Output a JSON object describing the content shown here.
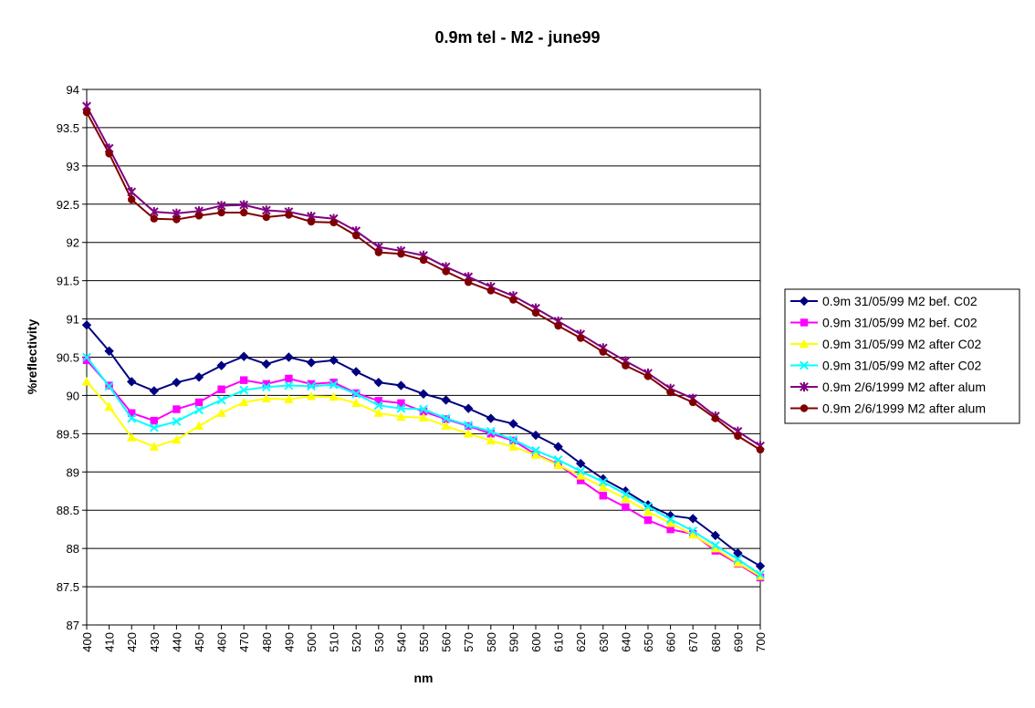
{
  "chart_data": {
    "type": "line",
    "title": "0.9m tel - M2 - june99",
    "xlabel": "nm",
    "ylabel": "%reflectivity",
    "x": [
      400,
      410,
      420,
      430,
      440,
      450,
      460,
      470,
      480,
      490,
      500,
      510,
      520,
      530,
      540,
      550,
      560,
      570,
      580,
      590,
      600,
      610,
      620,
      630,
      640,
      650,
      660,
      670,
      680,
      690,
      700
    ],
    "x_tick_labels": [
      "400",
      "410",
      "420",
      "430",
      "440",
      "450",
      "460",
      "470",
      "480",
      "490",
      "500",
      "510",
      "520",
      "530",
      "540",
      "550",
      "560",
      "570",
      "580",
      "590",
      "600",
      "610",
      "620",
      "630",
      "640",
      "650",
      "660",
      "670",
      "680",
      "690",
      "700"
    ],
    "ylim": [
      87,
      94
    ],
    "y_tick_labels": [
      "87",
      "87.5",
      "88",
      "88.5",
      "89",
      "89.5",
      "90",
      "90.5",
      "91",
      "91.5",
      "92",
      "92.5",
      "93",
      "93.5",
      "94"
    ],
    "grid": "horizontal",
    "legend_position": "right",
    "series": [
      {
        "name": "0.9m 31/05/99 M2  bef. C02",
        "color": "#000080",
        "marker": "diamond",
        "values": [
          90.92,
          90.58,
          90.18,
          90.06,
          90.17,
          90.24,
          90.39,
          90.51,
          90.41,
          90.5,
          90.43,
          90.46,
          90.31,
          90.17,
          90.13,
          90.02,
          89.94,
          89.83,
          89.7,
          89.63,
          89.48,
          89.33,
          89.11,
          88.91,
          88.75,
          88.57,
          88.43,
          88.39,
          88.17,
          87.94,
          87.77
        ]
      },
      {
        "name": "0.9m 31/05/99 M2  bef. C02",
        "color": "#ff00ff",
        "marker": "square",
        "values": [
          90.46,
          90.13,
          89.77,
          89.67,
          89.82,
          89.91,
          90.08,
          90.2,
          90.15,
          90.22,
          90.15,
          90.17,
          90.03,
          89.93,
          89.9,
          89.79,
          89.69,
          89.6,
          89.5,
          89.41,
          89.23,
          89.1,
          88.89,
          88.69,
          88.54,
          88.37,
          88.25,
          88.19,
          87.97,
          87.8,
          87.62
        ]
      },
      {
        "name": "0.9m 31/05/99 M2  after C02",
        "color": "#ffff00",
        "marker": "triangle",
        "values": [
          90.18,
          89.85,
          89.45,
          89.33,
          89.42,
          89.6,
          89.77,
          89.91,
          89.96,
          89.95,
          89.99,
          89.98,
          89.9,
          89.77,
          89.72,
          89.71,
          89.6,
          89.5,
          89.41,
          89.33,
          89.22,
          89.09,
          88.95,
          88.8,
          88.65,
          88.48,
          88.33,
          88.18,
          88.0,
          87.81,
          87.64
        ]
      },
      {
        "name": "0.9m 31/05/99 M2  after C02",
        "color": "#00ffff",
        "marker": "x",
        "values": [
          90.5,
          90.12,
          89.7,
          89.58,
          89.66,
          89.81,
          89.94,
          90.07,
          90.11,
          90.13,
          90.12,
          90.14,
          90.02,
          89.87,
          89.83,
          89.82,
          89.7,
          89.61,
          89.53,
          89.42,
          89.28,
          89.16,
          89.01,
          88.87,
          88.71,
          88.55,
          88.38,
          88.23,
          88.04,
          87.86,
          87.66
        ]
      },
      {
        "name": "0.9m 2/6/1999 M2 after alum",
        "color": "#800080",
        "marker": "star",
        "values": [
          93.78,
          93.23,
          92.66,
          92.4,
          92.38,
          92.41,
          92.48,
          92.49,
          92.42,
          92.4,
          92.34,
          92.31,
          92.15,
          91.94,
          91.89,
          91.83,
          91.68,
          91.55,
          91.42,
          91.3,
          91.14,
          90.97,
          90.8,
          90.62,
          90.45,
          90.29,
          90.09,
          89.96,
          89.73,
          89.53,
          89.34
        ]
      },
      {
        "name": "0.9m 2/6/1999 M2 after alum",
        "color": "#800000",
        "marker": "circle",
        "values": [
          93.7,
          93.16,
          92.56,
          92.31,
          92.3,
          92.35,
          92.39,
          92.39,
          92.33,
          92.36,
          92.27,
          92.26,
          92.09,
          91.87,
          91.85,
          91.77,
          91.62,
          91.48,
          91.37,
          91.25,
          91.08,
          90.91,
          90.75,
          90.57,
          90.39,
          90.25,
          90.04,
          89.91,
          89.7,
          89.47,
          89.29
        ]
      }
    ]
  }
}
